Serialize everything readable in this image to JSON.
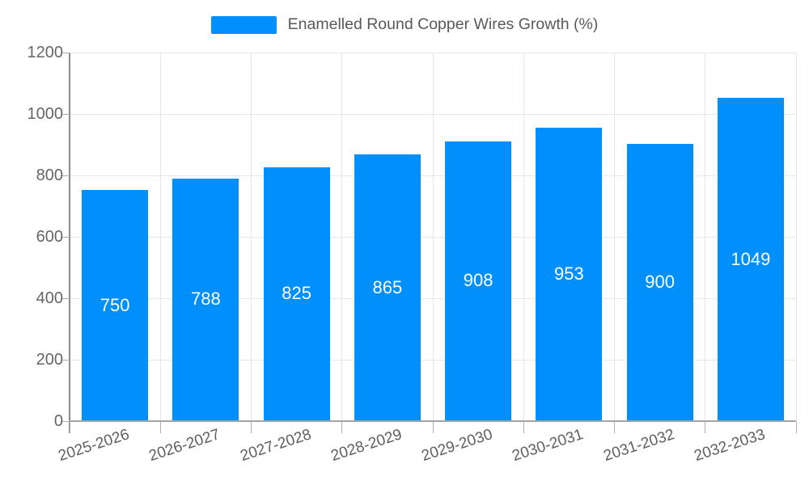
{
  "chart_data": {
    "type": "bar",
    "title": "Enamelled Round Copper Wires Growth (%)",
    "legend": {
      "position": "top",
      "label": "Enamelled Round Copper Wires Growth (%)"
    },
    "categories": [
      "2025-2026",
      "2026-2027",
      "2027-2028",
      "2028-2029",
      "2029-2030",
      "2030-2031",
      "2031-2032",
      "2032-2033"
    ],
    "series": [
      {
        "name": "Enamelled Round Copper Wires Growth (%)",
        "values": [
          750,
          788,
          825,
          865,
          908,
          953,
          900,
          1049
        ]
      }
    ],
    "xlabel": "",
    "ylabel": "",
    "ylim": [
      0,
      1200
    ],
    "yticks": [
      0,
      200,
      400,
      600,
      800,
      1000,
      1200
    ],
    "grid": true,
    "x_label_rotation_deg": -18,
    "colors": {
      "bar": "#008FFB",
      "value_label": "#FFFFFF",
      "legend_text": "#595959",
      "axis_text": "#666666",
      "x_axis_text": "#5F5F5F",
      "gridline": "#E7E7E7",
      "axis_line": "#8C8C8C",
      "background": "#FFFFFF"
    }
  }
}
